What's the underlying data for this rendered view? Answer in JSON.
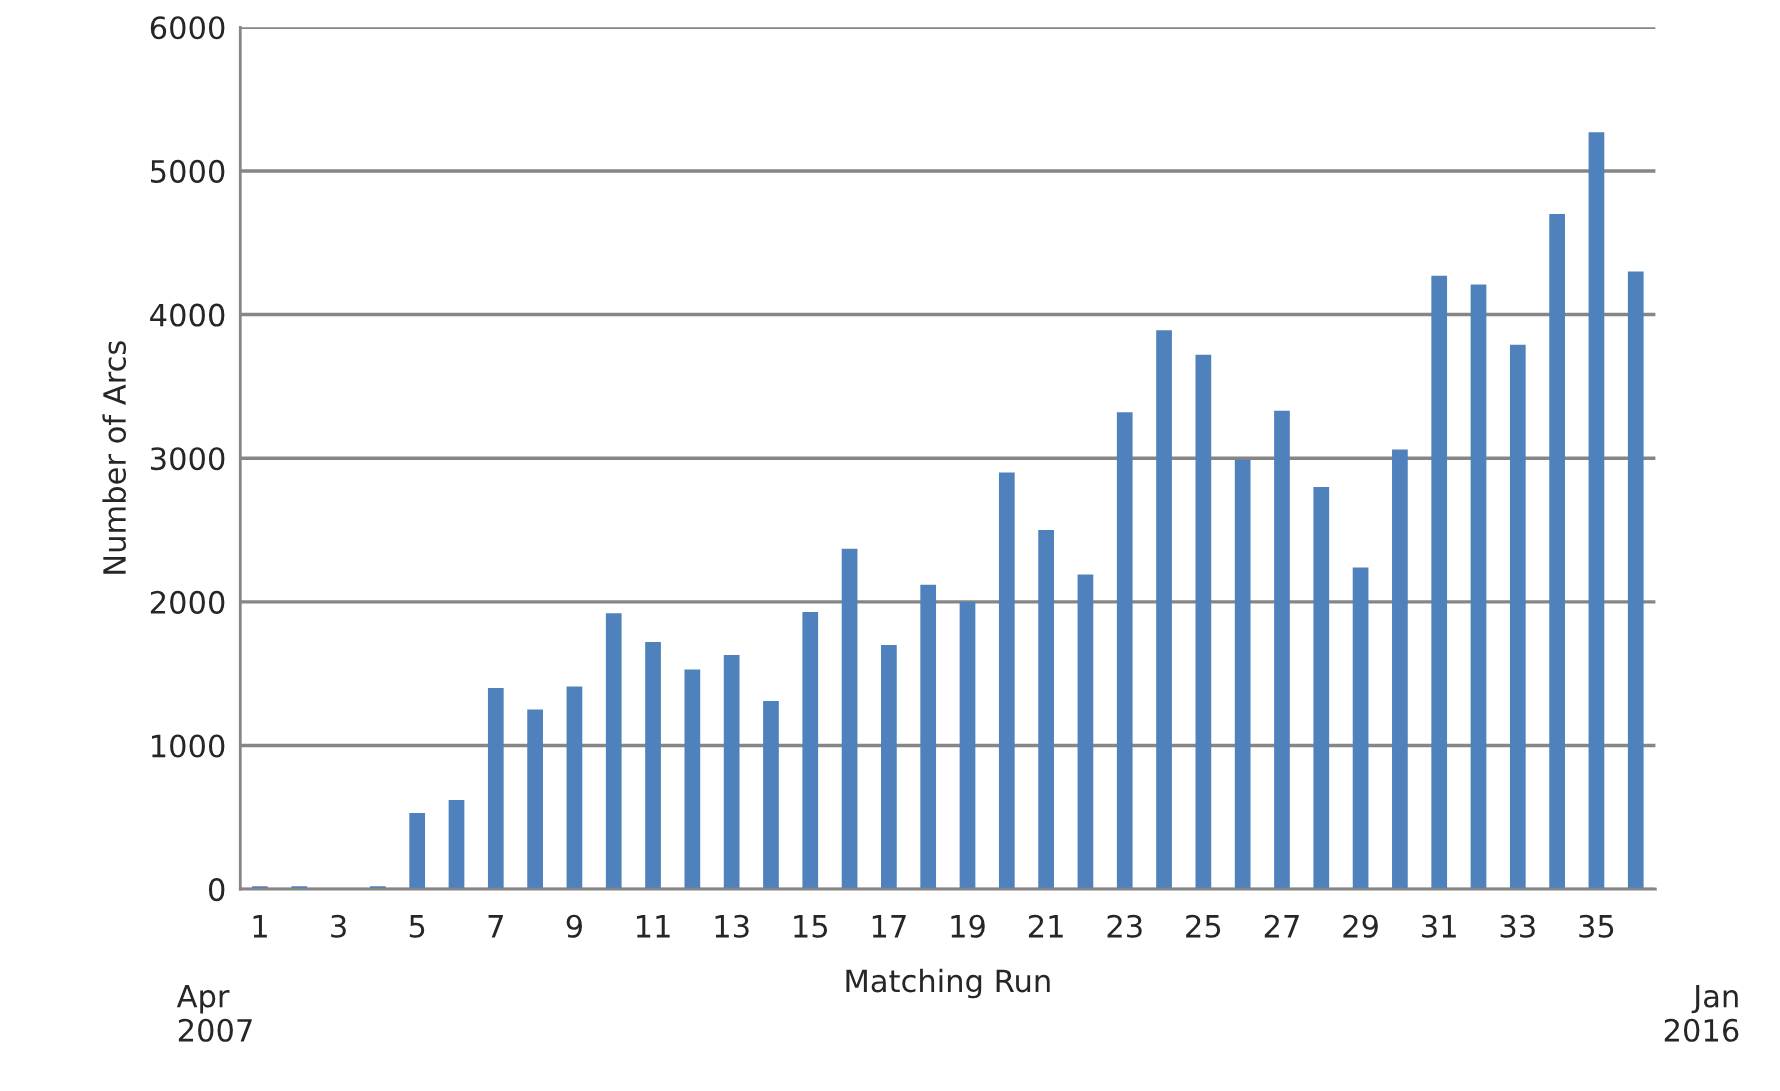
{
  "chart_data": {
    "type": "bar",
    "xlabel": "Matching Run",
    "ylabel": "Number of Arcs",
    "categories": [
      "1",
      null,
      "3",
      null,
      "5",
      null,
      "7",
      null,
      "9",
      null,
      "11",
      null,
      "13",
      null,
      "15",
      null,
      "17",
      null,
      "19",
      null,
      "21",
      null,
      "23",
      null,
      "25",
      null,
      "27",
      null,
      "29",
      null,
      "31",
      null,
      "33",
      null,
      "35",
      null
    ],
    "values": [
      20,
      20,
      0,
      20,
      530,
      620,
      1400,
      1250,
      1410,
      1920,
      1720,
      1530,
      1630,
      1310,
      1930,
      2370,
      1700,
      2120,
      2000,
      2900,
      2500,
      2190,
      3320,
      3890,
      3720,
      2990,
      3330,
      2800,
      2240,
      3060,
      4270,
      4210,
      3790,
      4700,
      5270,
      4300
    ],
    "color": "#4f81bd",
    "ylim": [
      0,
      6000
    ],
    "yticks": [
      0,
      1000,
      2000,
      3000,
      4000,
      5000,
      6000
    ],
    "grid": "y",
    "legend": false,
    "annotations": [
      "Apr\n2007",
      "Jan\n2016"
    ]
  }
}
